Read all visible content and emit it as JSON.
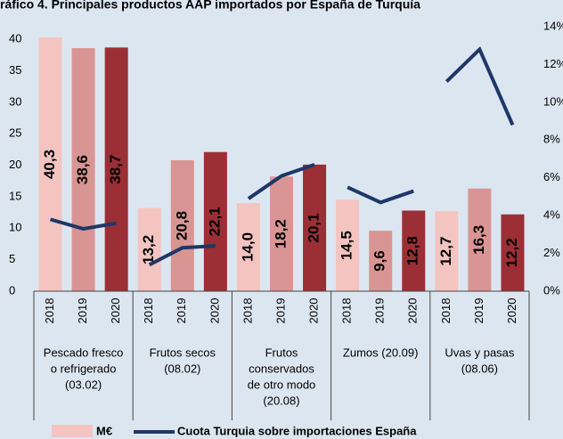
{
  "chart_data": {
    "type": "bar",
    "title": "ráfico 4. Principales productos AAP importados por España de Turquía",
    "categories": [
      "2018",
      "2019",
      "2020",
      "2018",
      "2019",
      "2020",
      "2018",
      "2019",
      "2020",
      "2018",
      "2019",
      "2020",
      "2018",
      "2019",
      "2020"
    ],
    "groups": [
      [
        "Pescado fresco",
        "o refrigerado",
        "(03.02)"
      ],
      [
        "Frutos secos",
        "(08.02)"
      ],
      [
        "Frutos",
        "conservados",
        "de otro modo",
        "(20.08)"
      ],
      [
        "Zumos (20.09)"
      ],
      [
        "Uvas y pasas",
        "(08.06)"
      ]
    ],
    "series": [
      {
        "name": "M€",
        "color": "#f4c4c1",
        "colors": [
          "#f4c4c1",
          "#d99593",
          "#9b2f35",
          "#f4c4c1",
          "#d99593",
          "#9b2f35",
          "#f4c4c1",
          "#d99593",
          "#9b2f35",
          "#f4c4c1",
          "#d99593",
          "#9b2f35",
          "#f4c4c1",
          "#d99593",
          "#9b2f35"
        ],
        "values": [
          40.3,
          38.6,
          38.7,
          13.2,
          20.8,
          22.1,
          14.0,
          18.2,
          20.1,
          14.5,
          9.6,
          12.8,
          12.7,
          16.3,
          12.2
        ],
        "value_labels": [
          "40,3",
          "38,6",
          "38,7",
          "13,2",
          "20,8",
          "22,1",
          "14,0",
          "18,2",
          "20,1",
          "14,5",
          "9,6",
          "12,8",
          "12,7",
          "16,3",
          "12,2"
        ]
      },
      {
        "name": "Cuota Turquia sobre importaciones España",
        "type": "line",
        "axis": "y2",
        "color": "#1f3767",
        "values": [
          3.8,
          3.3,
          3.6,
          1.4,
          2.3,
          2.4,
          4.9,
          6.1,
          6.7,
          5.5,
          4.7,
          5.3,
          11.1,
          12.8,
          8.8
        ]
      }
    ],
    "ylim": [
      0,
      42
    ],
    "yticks": [
      0,
      5,
      10,
      15,
      20,
      25,
      30,
      35,
      40
    ],
    "y2lim": [
      0,
      14
    ],
    "y2ticks": [
      {
        "value": 0,
        "label": "0%"
      },
      {
        "value": 2,
        "label": "2%"
      },
      {
        "value": 4,
        "label": "4%"
      },
      {
        "value": 6,
        "label": "6%"
      },
      {
        "value": 8,
        "label": "8%"
      },
      {
        "value": 10,
        "label": "10%"
      },
      {
        "value": 12,
        "label": "12%"
      },
      {
        "value": 14,
        "label": "14%"
      }
    ],
    "grid": false
  }
}
